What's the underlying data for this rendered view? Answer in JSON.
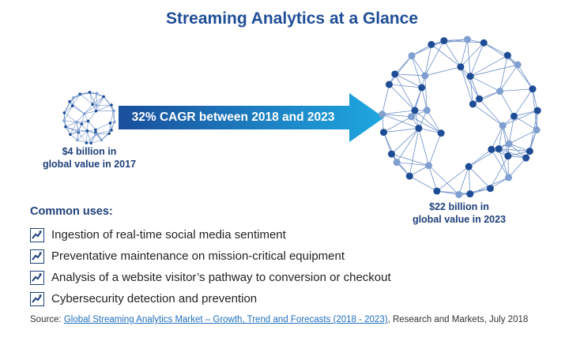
{
  "title": "Streaming Analytics at a Glance",
  "arrow_label": "32% CAGR between 2018 and 2023",
  "start_value": {
    "line1": "$4 billion in",
    "line2": "global value in 2017"
  },
  "end_value": {
    "line1": "$22 billion in",
    "line2": "global value in 2023"
  },
  "uses": {
    "title": "Common uses:",
    "items": [
      "Ingestion of real-time social media sentiment",
      "Preventative maintenance on mission-critical equipment",
      "Analysis of a website visitor’s pathway to conversion or checkout",
      "Cybersecurity detection and prevention"
    ]
  },
  "source": {
    "prefix": "Source: ",
    "link_text": "Global Streaming Analytics Market – Growth, Trend and Forecasts (2018 - 2023)",
    "suffix": ", Research and Markets, July 2018"
  },
  "colors": {
    "title": "#1e4d96",
    "arrow_start": "#1a4f9c",
    "arrow_end": "#1fa8e0",
    "node_dark": "#1e4d96",
    "node_light": "#7f9fd0",
    "edge": "#6d8fc7"
  },
  "icons": {
    "bullet": "trend-up-icon",
    "network": "network-sphere-icon"
  }
}
